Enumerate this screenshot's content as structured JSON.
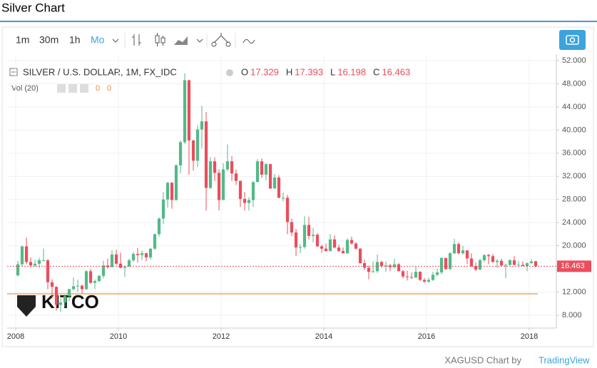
{
  "chart_data": {
    "type": "candlestick",
    "title": "Silver Chart",
    "subtitle": "SILVER / U.S. DOLLAR, 1M, FX_IDC",
    "toolbar": [
      "1m",
      "30m",
      "1h",
      "Mo"
    ],
    "ohlc_labels": [
      "O",
      "H",
      "L",
      "C"
    ],
    "indicator": "Vol (20)",
    "indicator_values": [
      0,
      0
    ],
    "logo": "KITCO",
    "source": "XAGUSD Chart by",
    "source_link": "TradingView",
    "up_color": "#53b987",
    "down_color": "#eb4d5c",
    "x": [
      2008,
      2008.083,
      2008.167,
      2008.25,
      2008.333,
      2008.417,
      2008.5,
      2008.583,
      2008.667,
      2008.75,
      2008.833,
      2008.917,
      2009,
      2009.083,
      2009.167,
      2009.25,
      2009.333,
      2009.417,
      2009.5,
      2009.583,
      2009.667,
      2009.75,
      2009.833,
      2009.917,
      2010,
      2010.083,
      2010.167,
      2010.25,
      2010.333,
      2010.417,
      2010.5,
      2010.583,
      2010.667,
      2010.75,
      2010.833,
      2010.917,
      2011,
      2011.083,
      2011.167,
      2011.25,
      2011.333,
      2011.417,
      2011.5,
      2011.583,
      2011.667,
      2011.75,
      2011.833,
      2011.917,
      2012,
      2012.083,
      2012.167,
      2012.25,
      2012.333,
      2012.417,
      2012.5,
      2012.583,
      2012.667,
      2012.75,
      2012.833,
      2012.917,
      2013,
      2013.083,
      2013.167,
      2013.25,
      2013.333,
      2013.417,
      2013.5,
      2013.583,
      2013.667,
      2013.75,
      2013.833,
      2013.917,
      2014,
      2014.083,
      2014.167,
      2014.25,
      2014.333,
      2014.417,
      2014.5,
      2014.583,
      2014.667,
      2014.75,
      2014.833,
      2014.917,
      2015,
      2015.083,
      2015.167,
      2015.25,
      2015.333,
      2015.417,
      2015.5,
      2015.583,
      2015.667,
      2015.75,
      2015.833,
      2015.917,
      2016,
      2016.083,
      2016.167,
      2016.25,
      2016.333,
      2016.417,
      2016.5,
      2016.583,
      2016.667,
      2016.75,
      2016.833,
      2016.917,
      2017,
      2017.083,
      2017.167,
      2017.25,
      2017.333,
      2017.417,
      2017.5,
      2017.583,
      2017.667,
      2017.75,
      2017.833,
      2017.917,
      2018,
      2018.083
    ],
    "open": [
      14.9,
      16.8,
      19.9,
      17.2,
      16.6,
      16.9,
      17.5,
      17.5,
      13.7,
      12.9,
      9.8,
      10.2,
      11.3,
      12.5,
      13.0,
      13.1,
      12.5,
      15.6,
      13.6,
      13.9,
      14.8,
      16.6,
      16.3,
      18.5,
      16.9,
      16.2,
      16.4,
      17.5,
      18.6,
      18.4,
      18.7,
      18.0,
      19.5,
      22.0,
      24.7,
      28.0,
      30.9,
      27.9,
      33.9,
      37.9,
      48.6,
      38.2,
      34.7,
      40.1,
      41.5,
      30.0,
      34.6,
      32.6,
      27.9,
      33.2,
      34.6,
      32.5,
      31.2,
      28.1,
      27.4,
      27.9,
      31.0,
      34.6,
      32.3,
      34.1,
      29.9,
      31.8,
      28.3,
      28.3,
      24.1,
      22.3,
      19.7,
      19.8,
      23.6,
      21.7,
      21.9,
      19.9,
      19.5,
      19.1,
      21.1,
      19.7,
      19.1,
      18.7,
      21.0,
      20.4,
      19.5,
      17.0,
      16.2,
      15.5,
      15.6,
      17.2,
      16.5,
      16.6,
      16.3,
      16.8,
      15.6,
      14.7,
      14.6,
      14.5,
      15.5,
      14.1,
      13.8,
      14.1,
      15.0,
      15.4,
      17.9,
      16.0,
      18.7,
      20.3,
      18.7,
      19.2,
      17.8,
      16.5,
      15.9,
      17.5,
      18.4,
      18.2,
      17.2,
      17.4,
      16.6,
      16.7,
      17.5,
      16.7,
      16.7,
      16.5,
      17.0,
      17.329
    ],
    "high": [
      17.4,
      20.0,
      21.4,
      18.0,
      17.6,
      17.9,
      19.5,
      17.7,
      14.2,
      13.0,
      10.9,
      11.5,
      12.6,
      14.5,
      14.2,
      13.3,
      15.8,
      16.0,
      14.2,
      15.0,
      17.4,
      17.8,
      19.2,
      19.3,
      18.8,
      16.6,
      17.8,
      18.9,
      19.6,
      19.2,
      18.8,
      19.6,
      22.1,
      24.9,
      29.3,
      31.0,
      31.0,
      34.1,
      38.2,
      49.8,
      48.7,
      38.3,
      40.8,
      44.2,
      43.1,
      35.3,
      35.3,
      33.2,
      34.3,
      37.5,
      35.5,
      33.2,
      31.3,
      29.3,
      28.4,
      31.2,
      35.0,
      35.1,
      34.3,
      34.2,
      32.4,
      32.2,
      29.2,
      28.8,
      24.7,
      22.9,
      20.3,
      25.1,
      25.0,
      23.1,
      22.2,
      20.2,
      20.4,
      22.0,
      21.8,
      20.2,
      19.7,
      21.3,
      21.6,
      20.6,
      19.6,
      17.6,
      16.6,
      17.3,
      18.5,
      17.4,
      17.3,
      16.9,
      17.8,
      17.0,
      15.8,
      15.7,
      15.4,
      16.4,
      15.6,
      14.4,
      14.5,
      15.5,
      16.0,
      18.0,
      17.9,
      18.9,
      21.2,
      20.6,
      20.0,
      19.2,
      18.7,
      17.1,
      17.8,
      18.5,
      18.6,
      18.6,
      17.7,
      17.8,
      16.9,
      17.7,
      18.2,
      17.4,
      17.3,
      17.1,
      17.7,
      17.393
    ],
    "low": [
      14.7,
      16.5,
      16.8,
      16.3,
      16.3,
      16.2,
      17.3,
      12.5,
      10.9,
      8.8,
      8.6,
      9.4,
      10.4,
      12.3,
      12.0,
      11.8,
      12.4,
      13.4,
      12.5,
      13.7,
      14.4,
      16.1,
      16.3,
      16.7,
      16.1,
      14.6,
      16.3,
      17.2,
      17.1,
      17.5,
      17.3,
      17.6,
      19.3,
      21.6,
      23.8,
      26.6,
      26.4,
      27.8,
      32.5,
      37.6,
      32.3,
      33.0,
      33.6,
      36.8,
      26.1,
      29.8,
      31.2,
      26.1,
      27.9,
      32.9,
      31.2,
      30.5,
      26.7,
      26.1,
      26.1,
      26.7,
      31.0,
      31.7,
      31.3,
      29.8,
      29.9,
      28.2,
      27.7,
      22.0,
      21.7,
      18.2,
      18.7,
      19.5,
      21.1,
      20.6,
      19.8,
      18.8,
      19.0,
      19.0,
      19.6,
      18.9,
      18.8,
      18.6,
      20.2,
      19.3,
      16.9,
      15.8,
      14.2,
      15.3,
      15.3,
      16.2,
      15.5,
      15.6,
      16.1,
      15.6,
      14.4,
      14.0,
      14.3,
      14.5,
      13.9,
      13.6,
      13.6,
      13.9,
      14.7,
      15.1,
      15.8,
      15.8,
      18.6,
      18.5,
      18.5,
      16.8,
      16.3,
      15.6,
      15.8,
      17.2,
      16.8,
      17.1,
      16.2,
      16.5,
      14.4,
      16.6,
      16.6,
      16.6,
      16.5,
      15.6,
      16.9,
      16.198
    ],
    "close": [
      16.8,
      19.9,
      17.2,
      16.6,
      16.9,
      17.5,
      17.5,
      13.7,
      12.9,
      9.8,
      10.2,
      11.3,
      12.5,
      13.0,
      13.1,
      12.5,
      15.6,
      13.6,
      13.9,
      14.8,
      16.6,
      16.3,
      18.5,
      16.9,
      16.2,
      16.4,
      17.5,
      18.6,
      18.4,
      18.7,
      18.0,
      19.5,
      22.0,
      24.7,
      28.0,
      30.9,
      27.9,
      33.9,
      37.9,
      48.6,
      38.2,
      34.7,
      40.1,
      41.5,
      30.0,
      34.6,
      32.6,
      27.9,
      33.2,
      34.6,
      32.5,
      31.2,
      28.1,
      27.4,
      27.9,
      31.0,
      34.6,
      32.3,
      34.1,
      29.9,
      31.8,
      28.3,
      28.3,
      24.1,
      22.3,
      19.7,
      19.8,
      23.6,
      21.7,
      21.9,
      19.9,
      19.5,
      19.1,
      21.1,
      19.7,
      19.1,
      18.7,
      21.0,
      20.4,
      19.5,
      17.0,
      16.2,
      15.5,
      15.6,
      17.2,
      16.5,
      16.6,
      16.3,
      16.8,
      15.6,
      14.7,
      14.6,
      14.5,
      15.5,
      14.1,
      13.8,
      14.1,
      15.0,
      15.4,
      17.9,
      16.0,
      18.7,
      20.3,
      18.7,
      19.2,
      17.8,
      16.5,
      15.9,
      17.5,
      18.4,
      18.2,
      17.2,
      17.4,
      16.6,
      16.7,
      17.5,
      16.7,
      16.7,
      16.5,
      17.0,
      17.3,
      16.463
    ],
    "reference_line": {
      "value": 11.7,
      "color": "#f7a35c"
    },
    "xlim": [
      2007.833,
      2018.528
    ],
    "xticks": [
      2008,
      2010,
      2012,
      2014,
      2016,
      2018
    ],
    "ylim": [
      5.78,
      52.86
    ],
    "yticks": [
      {
        "value": 8,
        "label": "8.000"
      },
      {
        "value": 12,
        "label": "12.000"
      },
      {
        "value": 16,
        "label": "16.000"
      },
      {
        "value": 20,
        "label": "20.000"
      },
      {
        "value": 24,
        "label": "24.000"
      },
      {
        "value": 28,
        "label": "28.000"
      },
      {
        "value": 32,
        "label": "32.000"
      },
      {
        "value": 36,
        "label": "36.000"
      },
      {
        "value": 40,
        "label": "40.000"
      },
      {
        "value": 44,
        "label": "44.000"
      },
      {
        "value": 48,
        "label": "48.000"
      },
      {
        "value": 52,
        "label": "52.000"
      }
    ],
    "grid": true
  }
}
